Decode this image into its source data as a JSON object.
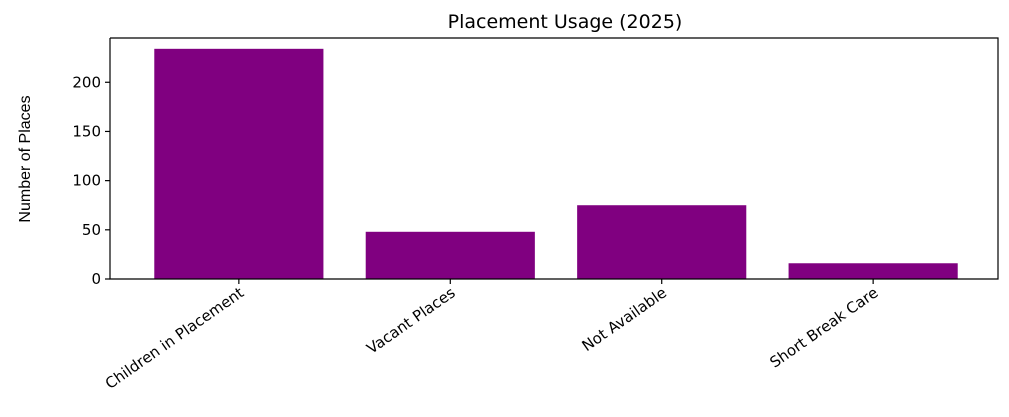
{
  "chart_data": {
    "type": "bar",
    "title": "Placement Usage (2025)",
    "xlabel": "",
    "ylabel": "Number of Places",
    "categories": [
      "Children in Placement",
      "Vacant Places",
      "Not Available",
      "Short Break Care"
    ],
    "values": [
      234,
      48,
      75,
      16
    ],
    "ylim": [
      0,
      245
    ],
    "yticks": [
      0,
      50,
      100,
      150,
      200
    ],
    "bar_color": "#800080",
    "grid": false,
    "legend": "none"
  }
}
